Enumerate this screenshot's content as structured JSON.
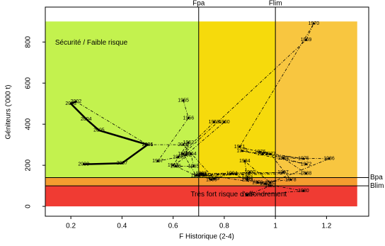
{
  "chart_data": {
    "type": "phase",
    "x_label": "F Historique (2-4)",
    "y_label": "Géniteurs ('000 t)",
    "xlim": [
      0.1,
      1.365
    ],
    "ylim": [
      -48,
      970
    ],
    "xticks": [
      0.2,
      0.4,
      0.6,
      0.8,
      1.0,
      1.2
    ],
    "yticks": [
      0,
      200,
      400,
      600,
      800
    ],
    "zones": [
      {
        "color": "#c3f24e",
        "x": [
          0.1,
          0.7
        ],
        "y": [
          140,
          900
        ],
        "label": "Sécurité / Faible risque"
      },
      {
        "color": "#f6da0c",
        "x": [
          0.7,
          1.0
        ],
        "y": [
          140,
          900
        ]
      },
      {
        "color": "#f8c640",
        "x": [
          1.0,
          1.32
        ],
        "y": [
          140,
          900
        ]
      },
      {
        "color": "#f59c30",
        "x": [
          0.1,
          1.32
        ],
        "y": [
          100,
          140
        ]
      },
      {
        "color": "#f03b33",
        "x": [
          0.1,
          1.32
        ],
        "y": [
          0,
          100
        ],
        "label": "Très fort risque d'effondrement"
      }
    ],
    "reference_lines": [
      {
        "axis": "x",
        "value": 0.7,
        "label": "Fpa"
      },
      {
        "axis": "x",
        "value": 1.0,
        "label": "Flim"
      },
      {
        "axis": "y",
        "value": 140,
        "label": "Bpa"
      },
      {
        "axis": "y",
        "value": 100,
        "label": "Blim"
      }
    ],
    "series": [
      {
        "style": "dashed",
        "labels": [
          "1955",
          "1956",
          "1957",
          "1958",
          "1959",
          "1960",
          "1961",
          "1962",
          "1963",
          "1964",
          "1965",
          "1966",
          "1967",
          "1968",
          "1969",
          "1970",
          "1971",
          "1972",
          "1973",
          "1974",
          "1975",
          "1976",
          "1977",
          "1978",
          "1979",
          "1980",
          "1981",
          "1982",
          "1983",
          "1984",
          "1985",
          "1986",
          "1987",
          "1988",
          "1989",
          "1990",
          "1991",
          "1992",
          "1993",
          "1994",
          "1995",
          "1996",
          "1997",
          "1998",
          "1999",
          "2000",
          "2001"
        ],
        "x": [
          0.64,
          0.66,
          0.54,
          0.62,
          0.76,
          0.8,
          0.65,
          0.66,
          0.6,
          0.67,
          0.68,
          0.61,
          0.69,
          0.64,
          1.12,
          1.15,
          0.86,
          1.12,
          0.87,
          0.95,
          1.11,
          0.94,
          0.98,
          1.06,
          0.93,
          1.11,
          0.89,
          0.98,
          0.89,
          0.88,
          0.98,
          1.21,
          1.03,
          1.12,
          0.7,
          0.9,
          0.71,
          0.96,
          0.89,
          0.83,
          0.75,
          0.72,
          1.03,
          0.71,
          0.76,
          0.64,
          0.5
        ],
        "values": [
          515,
          430,
          220,
          240,
          410,
          410,
          250,
          310,
          200,
          255,
          195,
          195,
          150,
          255,
          810,
          890,
          290,
          205,
          270,
          255,
          232,
          265,
          255,
          130,
          115,
          75,
          55,
          100,
          140,
          220,
          115,
          232,
          235,
          160,
          150,
          165,
          155,
          110,
          130,
          160,
          130,
          150,
          165,
          160,
          135,
          300,
          300
        ]
      },
      {
        "style": "solid",
        "labels": [
          "2002",
          "2003",
          "2004",
          "2005",
          "2006",
          "2007",
          "2008"
        ],
        "x": [
          0.22,
          0.2,
          0.26,
          0.31,
          0.5,
          0.4,
          0.25
        ],
        "values": [
          510,
          500,
          425,
          370,
          300,
          210,
          205
        ]
      }
    ]
  }
}
